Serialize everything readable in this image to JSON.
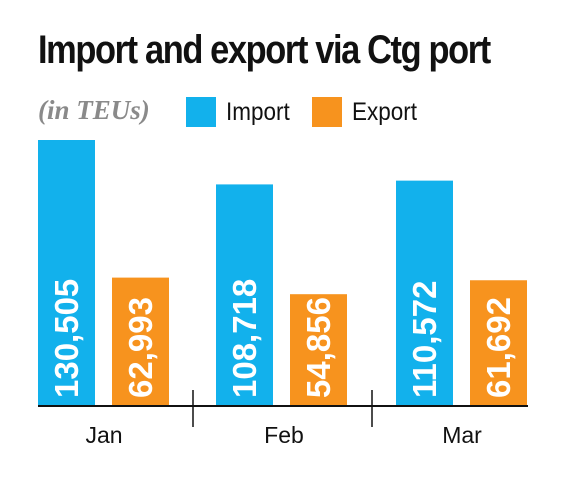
{
  "chart_data": {
    "type": "bar",
    "title": "Import and export via Ctg port",
    "subtitle": "(in TEUs)",
    "categories": [
      "Jan",
      "Feb",
      "Mar"
    ],
    "series": [
      {
        "name": "Import",
        "color": "#12b1ec",
        "values": [
          130505,
          108718,
          110572
        ],
        "labels": [
          "130,505",
          "108,718",
          "110,572"
        ]
      },
      {
        "name": "Export",
        "color": "#f7931e",
        "values": [
          62993,
          54856,
          61692
        ],
        "labels": [
          "62,993",
          "54,856",
          "61,692"
        ]
      }
    ],
    "ylim": [
      0,
      130505
    ],
    "grid": false,
    "legend_placement": "top",
    "axis_color": "#111111"
  }
}
